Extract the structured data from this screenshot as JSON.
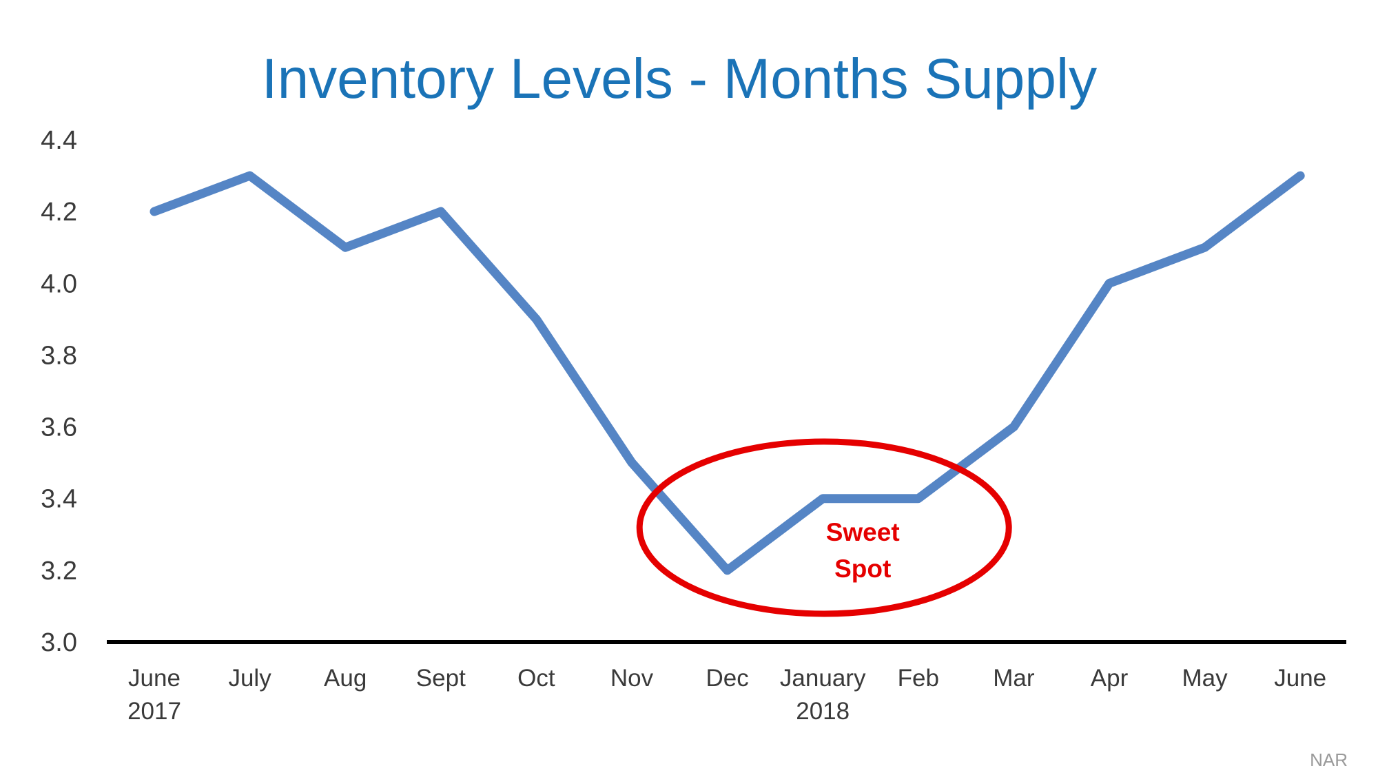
{
  "chart_data": {
    "type": "line",
    "title": "Inventory Levels - Months Supply",
    "categories": [
      {
        "label": "June",
        "sublabel": "2017"
      },
      {
        "label": "July",
        "sublabel": ""
      },
      {
        "label": "Aug",
        "sublabel": ""
      },
      {
        "label": "Sept",
        "sublabel": ""
      },
      {
        "label": "Oct",
        "sublabel": ""
      },
      {
        "label": "Nov",
        "sublabel": ""
      },
      {
        "label": "Dec",
        "sublabel": ""
      },
      {
        "label": "January",
        "sublabel": "2018"
      },
      {
        "label": "Feb",
        "sublabel": ""
      },
      {
        "label": "Mar",
        "sublabel": ""
      },
      {
        "label": "Apr",
        "sublabel": ""
      },
      {
        "label": "May",
        "sublabel": ""
      },
      {
        "label": "June",
        "sublabel": ""
      }
    ],
    "series": [
      {
        "values": [
          4.2,
          4.3,
          4.1,
          4.2,
          3.9,
          3.5,
          3.2,
          3.4,
          3.4,
          3.6,
          4.0,
          4.1,
          4.3
        ]
      }
    ],
    "ylim": [
      3.0,
      4.4
    ],
    "yticks": [
      "3.0",
      "3.2",
      "3.4",
      "3.6",
      "3.8",
      "4.0",
      "4.2",
      "4.4"
    ],
    "grid": false,
    "legend": "none",
    "colors": {
      "line": "#5585c5",
      "title": "#1a73b7",
      "annotation": "#e50000",
      "axis": "#000000",
      "source": "#9a9a9a"
    },
    "annotation": {
      "lines": [
        "Sweet",
        "Spot"
      ],
      "shape": "ellipse",
      "around_categories": [
        "Dec",
        "January",
        "Feb"
      ]
    },
    "source": "NAR"
  }
}
